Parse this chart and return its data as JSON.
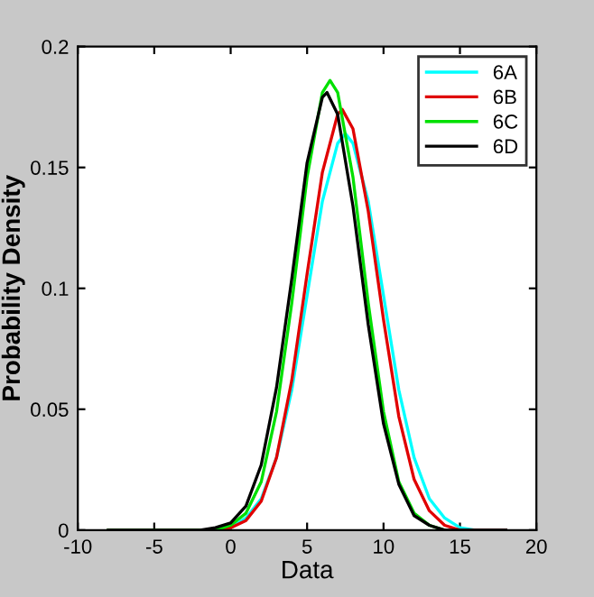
{
  "chart_data": {
    "type": "line",
    "xlabel": "Data",
    "ylabel": "Probability Density",
    "xlim": [
      -10,
      20
    ],
    "ylim": [
      0,
      0.2
    ],
    "xticks": [
      -10,
      -5,
      0,
      5,
      10,
      15,
      20
    ],
    "yticks": [
      0,
      0.05,
      0.1,
      0.15,
      0.2
    ],
    "grid": false,
    "legend": "top right",
    "marker": "none",
    "line_style": "solid",
    "series": [
      {
        "name": "6A",
        "color": "#00ffff",
        "x": [
          -8,
          -1,
          0,
          1,
          2,
          3,
          4,
          5,
          6,
          7,
          7.5,
          8,
          9,
          10,
          11,
          12,
          13,
          14,
          15,
          16,
          18
        ],
        "values": [
          0,
          0,
          0.001,
          0.005,
          0.013,
          0.03,
          0.058,
          0.097,
          0.136,
          0.16,
          0.164,
          0.16,
          0.136,
          0.097,
          0.058,
          0.03,
          0.013,
          0.005,
          0.001,
          0,
          0
        ]
      },
      {
        "name": "6B",
        "color": "#e00000",
        "x": [
          -8,
          -1,
          0,
          1,
          2,
          3,
          4,
          5,
          6,
          7,
          7.3,
          8,
          9,
          10,
          11,
          12,
          13,
          14,
          15,
          16,
          18
        ],
        "values": [
          0,
          0,
          0.001,
          0.004,
          0.012,
          0.03,
          0.062,
          0.106,
          0.148,
          0.172,
          0.174,
          0.166,
          0.132,
          0.087,
          0.047,
          0.021,
          0.008,
          0.002,
          0,
          0,
          0
        ]
      },
      {
        "name": "6C",
        "color": "#00e000",
        "x": [
          -8,
          -1,
          0,
          1,
          2,
          3,
          4,
          5,
          6,
          6.5,
          7,
          8,
          9,
          10,
          11,
          12,
          13,
          14
        ],
        "values": [
          0,
          0,
          0.002,
          0.007,
          0.02,
          0.049,
          0.094,
          0.146,
          0.181,
          0.186,
          0.181,
          0.146,
          0.094,
          0.049,
          0.02,
          0.007,
          0.002,
          0
        ]
      },
      {
        "name": "6D",
        "color": "#000000",
        "x": [
          -8,
          -2,
          -1,
          0,
          1,
          2,
          3,
          4,
          5,
          6,
          6.3,
          7,
          8,
          9,
          10,
          11,
          12,
          13,
          14,
          16,
          18
        ],
        "values": [
          0,
          0,
          0.001,
          0.003,
          0.01,
          0.027,
          0.059,
          0.104,
          0.152,
          0.179,
          0.181,
          0.172,
          0.134,
          0.085,
          0.044,
          0.019,
          0.006,
          0.002,
          0,
          0,
          0
        ]
      }
    ]
  }
}
